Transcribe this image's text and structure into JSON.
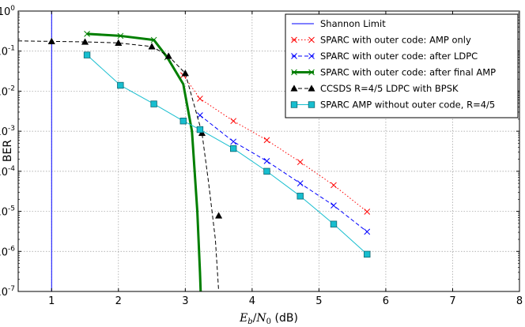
{
  "chart_data": {
    "type": "line",
    "xlabel": "Eb/N0 (dB)",
    "ylabel": "BER",
    "xlim": [
      0.5,
      8
    ],
    "ylim": [
      1e-07,
      1
    ],
    "yscale": "log",
    "grid": true,
    "legend_position": "top-right",
    "x_ticks": [
      1,
      2,
      3,
      4,
      5,
      6,
      7,
      8
    ],
    "y_ticks": [
      {
        "value": 1,
        "mantissa": "10",
        "exp": "0"
      },
      {
        "value": 0.1,
        "mantissa": "10",
        "exp": "-1"
      },
      {
        "value": 0.01,
        "mantissa": "10",
        "exp": "-2"
      },
      {
        "value": 0.001,
        "mantissa": "10",
        "exp": "-3"
      },
      {
        "value": 0.0001,
        "mantissa": "10",
        "exp": "-4"
      },
      {
        "value": 1e-05,
        "mantissa": "10",
        "exp": "-5"
      },
      {
        "value": 1e-06,
        "mantissa": "10",
        "exp": "-6"
      },
      {
        "value": 1e-07,
        "mantissa": "10",
        "exp": "-7"
      }
    ],
    "series": [
      {
        "name": "Shannon Limit",
        "color": "#0000ff",
        "style": "solid",
        "marker": "none",
        "vertical_x": 1.0
      },
      {
        "name": "SPARC with outer code: AMP only",
        "color": "#ff0000",
        "style": "dotted",
        "marker": "x",
        "x": [
          2.97,
          3.22,
          3.72,
          4.22,
          4.72,
          5.22,
          5.72
        ],
        "y": [
          0.025,
          0.0065,
          0.0018,
          0.0006,
          0.00017,
          4.5e-05,
          9.8e-06
        ]
      },
      {
        "name": "SPARC with outer code: after LDPC",
        "color": "#0000ff",
        "style": "dashed",
        "marker": "x",
        "x": [
          3.22,
          3.72,
          4.22,
          4.72,
          5.22,
          5.72
        ],
        "y": [
          0.0025,
          0.00055,
          0.00018,
          5e-05,
          1.4e-05,
          3.1e-06
        ]
      },
      {
        "name": "SPARC with outer code: after final AMP",
        "color": "#007f00",
        "style": "solid",
        "marker": "x",
        "x": [
          1.53,
          2.03,
          2.53,
          2.73,
          2.97,
          3.1,
          3.18,
          3.22,
          3.23
        ],
        "y": [
          0.27,
          0.24,
          0.19,
          0.07,
          0.015,
          0.001,
          1e-05,
          3e-07,
          1e-07
        ]
      },
      {
        "name": "CCSDS R=4/5 LDPC with BPSK",
        "color": "#000000",
        "style": "dashed",
        "marker": "triangle",
        "x": [
          0.5,
          1.0,
          1.5,
          2.0,
          2.5,
          2.75,
          3.0,
          3.25,
          3.35,
          3.45,
          3.5
        ],
        "y": [
          0.18,
          0.175,
          0.17,
          0.16,
          0.13,
          0.075,
          0.028,
          0.0009,
          5e-05,
          2e-06,
          1e-07
        ],
        "markers_at": [
          1.0,
          1.5,
          2.0,
          2.5,
          2.75,
          3.0,
          3.25,
          3.5
        ]
      },
      {
        "name": "SPARC AMP without outer code, R=4/5",
        "color": "#17becf",
        "style": "solid",
        "marker": "square",
        "x": [
          1.53,
          2.03,
          2.53,
          2.97,
          3.22,
          3.72,
          4.22,
          4.72,
          5.22,
          5.72
        ],
        "y": [
          0.08,
          0.014,
          0.0048,
          0.0018,
          0.0011,
          0.00037,
          0.0001,
          2.4e-05,
          4.8e-06,
          8.5e-07
        ]
      }
    ],
    "ccsds_marker_y_at_3_5": 7.8e-06
  }
}
